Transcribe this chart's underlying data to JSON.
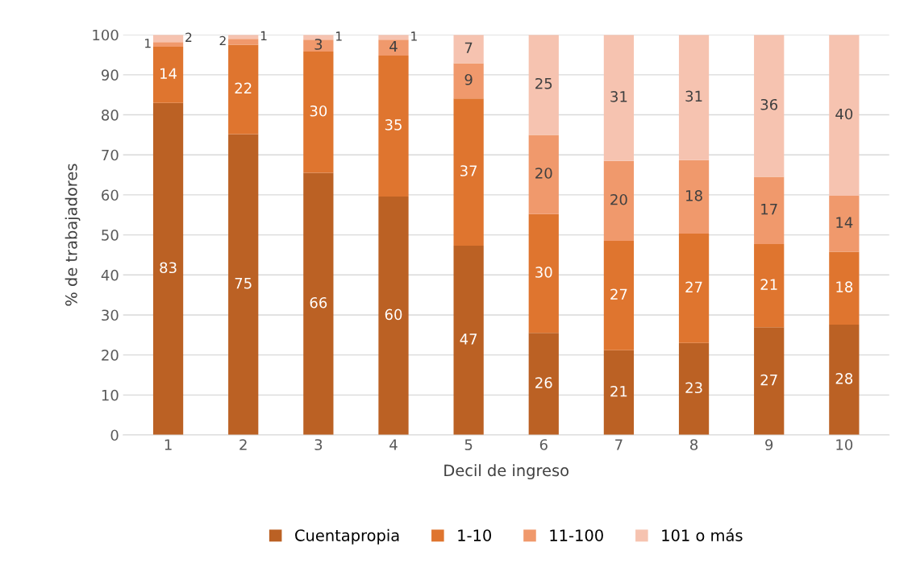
{
  "chart_data": {
    "type": "bar",
    "stacked": true,
    "xlabel": "Decil de ingreso",
    "ylabel": "% de trabajadores",
    "categories": [
      "1",
      "2",
      "3",
      "4",
      "5",
      "6",
      "7",
      "8",
      "9",
      "10"
    ],
    "series": [
      {
        "name": "Cuentapropia",
        "color": "#bb6124",
        "values": [
          83.0,
          75.2,
          65.5,
          59.6,
          47.3,
          25.5,
          21.2,
          23.0,
          26.9,
          27.6
        ],
        "value_labels": [
          "83",
          "75",
          "66",
          "60",
          "47",
          "26",
          "21",
          "23",
          "27",
          "28"
        ]
      },
      {
        "name": "1-10",
        "color": "#df752f",
        "values": [
          14.0,
          22.3,
          30.3,
          35.2,
          36.8,
          29.7,
          27.3,
          27.3,
          20.8,
          18.2
        ],
        "value_labels": [
          "14",
          "22",
          "30",
          "35",
          "37",
          "30",
          "27",
          "27",
          "21",
          "18"
        ]
      },
      {
        "name": "11-100",
        "color": "#f0996c",
        "values": [
          1.2,
          1.5,
          3.0,
          4.0,
          8.8,
          19.8,
          20.0,
          18.4,
          16.8,
          14.0
        ],
        "value_labels": [
          "1",
          "2",
          "3",
          "4",
          "9",
          "20",
          "20",
          "18",
          "17",
          "14"
        ]
      },
      {
        "name": "101 o más",
        "color": "#f6c3b0",
        "values": [
          1.8,
          1.0,
          1.2,
          1.2,
          7.1,
          25.0,
          31.5,
          31.3,
          35.5,
          40.2
        ],
        "value_labels": [
          "2",
          "1",
          "1",
          "1",
          "7",
          "25",
          "31",
          "31",
          "36",
          "40"
        ]
      }
    ],
    "ylim": [
      0,
      100
    ],
    "yticks": [
      0,
      10,
      20,
      30,
      40,
      50,
      60,
      70,
      80,
      90,
      100
    ],
    "grid": "y",
    "legend": "bottom"
  }
}
